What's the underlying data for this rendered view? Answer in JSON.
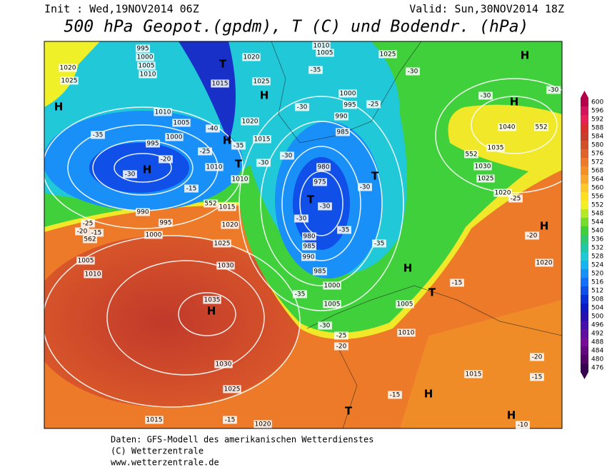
{
  "header": {
    "init": "Init : Wed,19NOV2014 06Z",
    "valid": "Valid: Sun,30NOV2014 18Z",
    "title": "500 hPa Geopot.(gpdm), T (C) und Bodendr. (hPa)"
  },
  "colorbar": {
    "ticks": [
      600,
      596,
      592,
      588,
      584,
      580,
      576,
      572,
      568,
      564,
      560,
      556,
      552,
      548,
      544,
      540,
      536,
      532,
      528,
      524,
      520,
      516,
      512,
      508,
      504,
      500,
      496,
      492,
      488,
      484,
      480,
      476
    ],
    "colors": [
      "#b4004a",
      "#d4145a",
      "#e82058",
      "#d82e2e",
      "#c83c28",
      "#d05028",
      "#e0642a",
      "#ec7a28",
      "#f49028",
      "#f8a82c",
      "#fcc82a",
      "#fce020",
      "#f0f028",
      "#b4e828",
      "#74dc2c",
      "#40d03c",
      "#30c870",
      "#20c8a8",
      "#20c8d8",
      "#18b4f0",
      "#1890f8",
      "#1470f8",
      "#1050e8",
      "#0830d8",
      "#1018c0",
      "#2810b0",
      "#4810a8",
      "#6010a0",
      "#780c98",
      "#640880",
      "#500468",
      "#380050"
    ]
  },
  "map": {
    "labels": [
      "995",
      "1000",
      "1005",
      "1010",
      "1020",
      "1025",
      "H",
      "1020",
      "T",
      "1015",
      "H",
      "1025",
      "1010",
      "1005",
      "1025",
      "H",
      "-35",
      "-30",
      "-30",
      "1000",
      "995",
      "-25",
      "990",
      "985",
      "-30",
      "1010",
      "1005",
      "1020",
      "1015",
      "-40",
      "H",
      "-35",
      "1000",
      "995",
      "-20",
      "-30",
      "H",
      "-25",
      "1010",
      "T",
      "-30",
      "-30",
      "1010",
      "980",
      "975",
      "T",
      "-30",
      "T",
      "-30",
      "-30",
      "980",
      "985",
      "990",
      "-35",
      "-35",
      "985",
      "H",
      "1000",
      "1005",
      "-35",
      "T",
      "1005",
      "-15",
      "-20",
      "H",
      "1020",
      "H",
      "-30",
      "1040",
      "552",
      "552",
      "1035",
      "1030",
      "1025",
      "1020",
      "-25",
      "-35",
      "-15",
      "552",
      "1015",
      "990",
      "995",
      "1000",
      "-25",
      "-20",
      "-15",
      "562",
      "1020",
      "1025",
      "1030",
      "1005",
      "1010",
      "1035",
      "H",
      "-30",
      "-25",
      "-20",
      "1010",
      "1030",
      "1025",
      "-15",
      "H",
      "T",
      "1015",
      "-20",
      "-15",
      "H",
      "-10",
      "1015",
      "-15",
      "1020"
    ]
  },
  "footer": [
    "Daten: GFS-Modell des amerikanischen Wetterdienstes",
    "(C) Wetterzentrale",
    "www.wetterzentrale.de"
  ]
}
